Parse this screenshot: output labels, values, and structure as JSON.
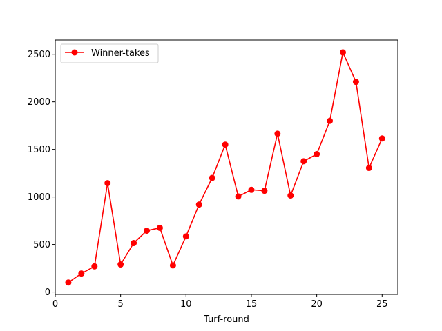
{
  "chart_data": {
    "type": "line",
    "title": "",
    "xlabel": "Turf-round",
    "ylabel": "",
    "xlim": [
      0,
      26.2
    ],
    "ylim": [
      -25,
      2650
    ],
    "xticks": [
      0,
      5,
      10,
      15,
      20,
      25
    ],
    "yticks": [
      0,
      500,
      1000,
      1500,
      2000,
      2500
    ],
    "grid": false,
    "legend_position": "top-left",
    "series": [
      {
        "name": "Winner-takes",
        "color": "#ff0000",
        "marker": "circle",
        "x": [
          1,
          2,
          3,
          4,
          5,
          6,
          7,
          8,
          9,
          10,
          11,
          12,
          13,
          14,
          15,
          16,
          17,
          18,
          19,
          20,
          21,
          22,
          23,
          24,
          25
        ],
        "y": [
          100,
          195,
          270,
          1145,
          290,
          515,
          645,
          675,
          280,
          585,
          920,
          1200,
          1550,
          1005,
          1075,
          1065,
          1665,
          1015,
          1375,
          1450,
          1800,
          2520,
          2210,
          1305,
          1615
        ]
      }
    ]
  }
}
